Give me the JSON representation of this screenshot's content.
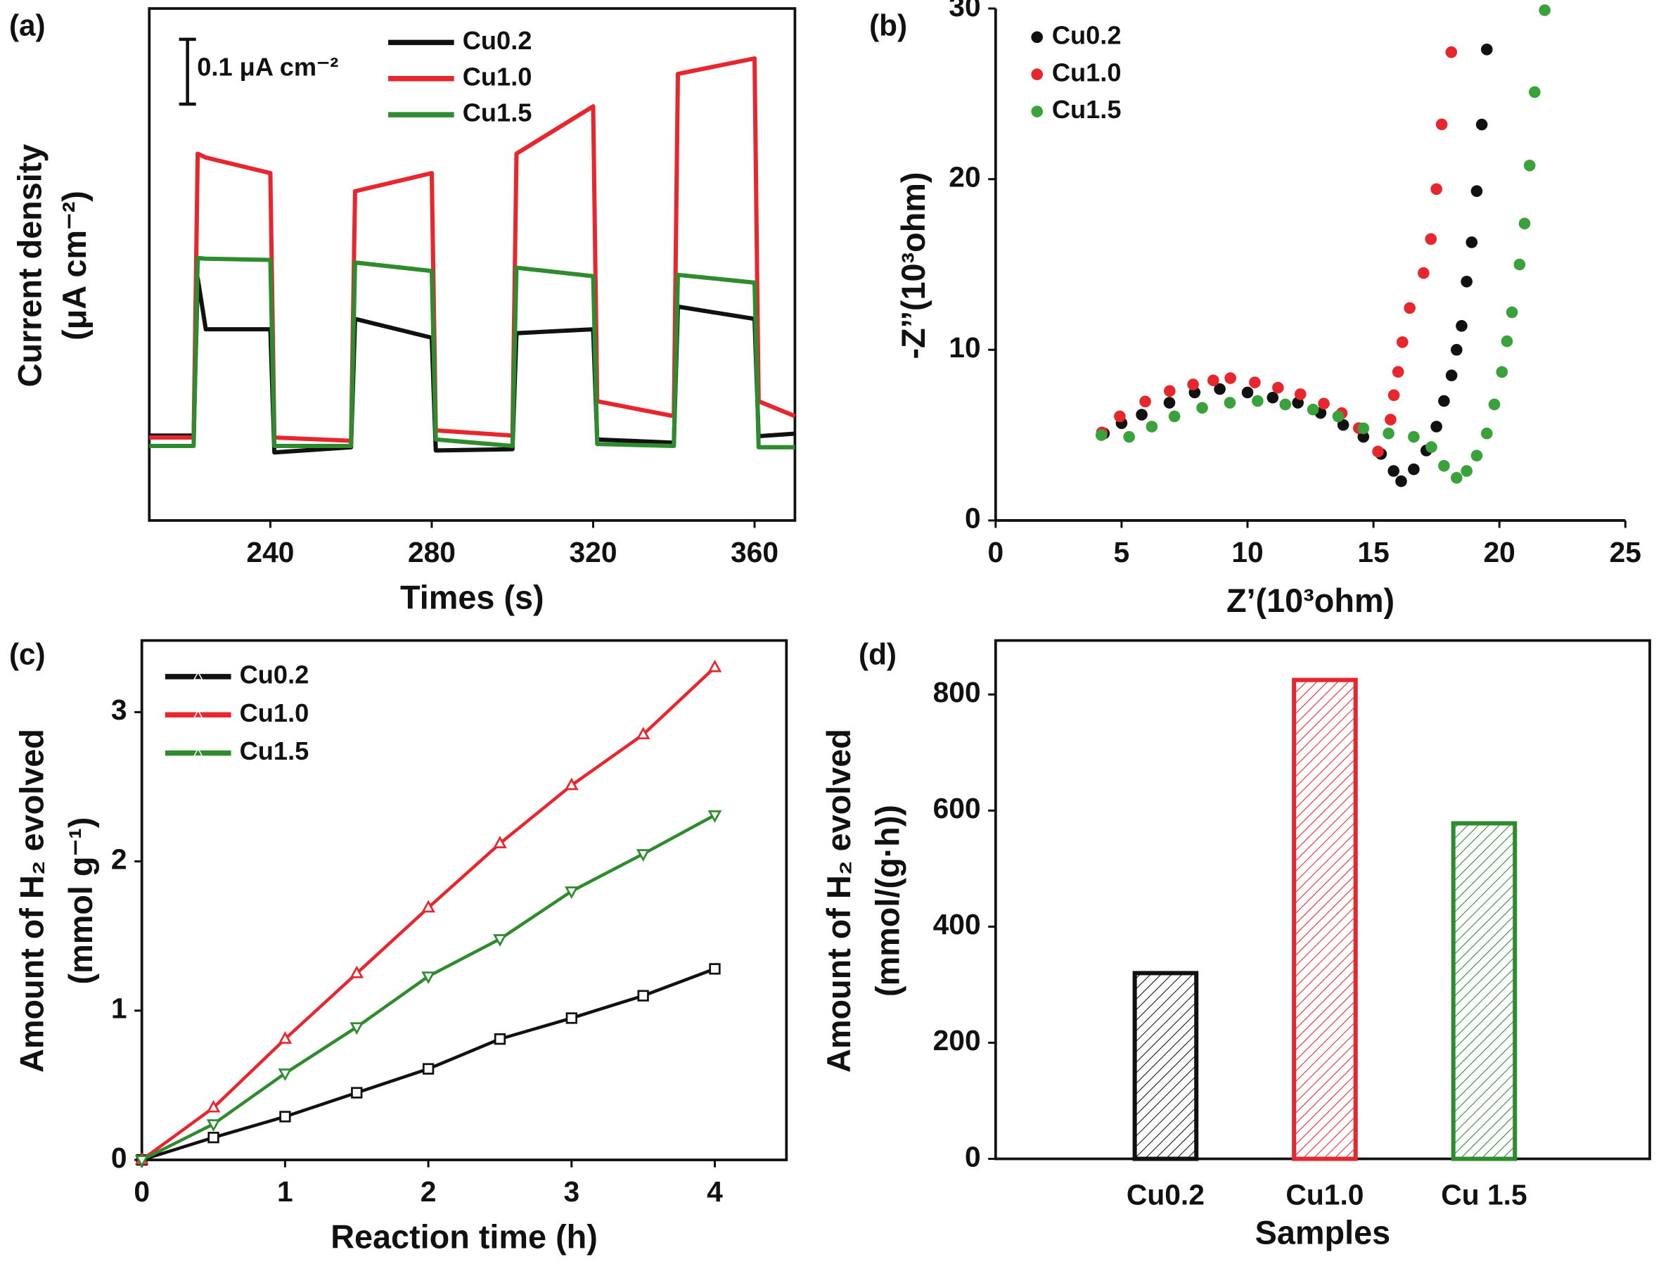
{
  "chart_data": [
    {
      "type": "line",
      "label": "(a)",
      "xlabel": "Times (s)",
      "ylabel": [
        "Current density",
        "(μA cm⁻²)"
      ],
      "scalebar": {
        "value": 0.1,
        "label": "0.1 μA cm⁻²"
      },
      "x": [
        210,
        221,
        222,
        224,
        240,
        241,
        260,
        261,
        280,
        281,
        300,
        301,
        320,
        321,
        340,
        341,
        360,
        361,
        370
      ],
      "series": [
        {
          "name": "Cu0.2",
          "color": "#111111",
          "values": [
            0.131,
            0.131,
            0.374,
            0.295,
            0.295,
            0.105,
            0.113,
            0.311,
            0.282,
            0.108,
            0.11,
            0.289,
            0.295,
            0.125,
            0.12,
            0.33,
            0.311,
            0.13,
            0.134
          ]
        },
        {
          "name": "Cu1.0",
          "color": "#e8262d",
          "values": [
            0.128,
            0.128,
            0.566,
            0.56,
            0.536,
            0.128,
            0.123,
            0.508,
            0.536,
            0.139,
            0.131,
            0.566,
            0.639,
            0.184,
            0.161,
            0.689,
            0.713,
            0.184,
            0.161
          ]
        },
        {
          "name": "Cu1.5",
          "color": "#2e8b2e",
          "values": [
            0.115,
            0.115,
            0.405,
            0.404,
            0.402,
            0.115,
            0.115,
            0.398,
            0.385,
            0.125,
            0.115,
            0.39,
            0.377,
            0.118,
            0.115,
            0.379,
            0.367,
            0.113,
            0.113
          ]
        }
      ],
      "xlim": [
        210,
        370
      ],
      "xticks": [
        240,
        280,
        320,
        360
      ],
      "ylim": [
        0,
        0.79
      ]
    },
    {
      "type": "scatter",
      "label": "(b)",
      "xlabel": "Z’(10³ohm)",
      "ylabel": [
        "-Z’’(10³ohm)"
      ],
      "series": [
        {
          "name": "Cu0.2",
          "color": "#111111",
          "x": [
            4.3,
            5.0,
            5.8,
            6.9,
            7.9,
            8.9,
            10.0,
            11.0,
            12.0,
            12.9,
            13.8,
            14.6,
            15.3,
            15.8,
            16.1,
            16.6,
            17.1,
            17.5,
            17.8,
            18.1,
            18.3,
            18.5,
            18.7,
            18.9,
            19.1,
            19.3,
            19.5
          ],
          "values": [
            5.1,
            5.7,
            6.2,
            6.9,
            7.5,
            7.7,
            7.5,
            7.2,
            6.9,
            6.3,
            5.6,
            4.9,
            3.9,
            2.9,
            2.3,
            3.0,
            4.1,
            5.5,
            7.0,
            8.5,
            10.0,
            11.4,
            14.0,
            16.3,
            19.3,
            23.2,
            27.6
          ]
        },
        {
          "name": "Cu1.0",
          "color": "#e8262d",
          "x": [
            4.22,
            4.93,
            5.94,
            6.91,
            7.84,
            8.64,
            9.32,
            10.29,
            11.21,
            12.1,
            13.03,
            13.74,
            14.42,
            15.18,
            15.68,
            15.81,
            15.98,
            16.15,
            16.44,
            16.99,
            17.28,
            17.5,
            17.71,
            18.09
          ],
          "values": [
            5.16,
            6.1,
            6.97,
            7.59,
            7.97,
            8.21,
            8.34,
            8.09,
            7.78,
            7.4,
            6.85,
            6.29,
            5.41,
            4.04,
            5.91,
            7.34,
            8.71,
            10.45,
            12.45,
            14.5,
            16.49,
            19.42,
            23.21,
            27.44
          ]
        },
        {
          "name": "Cu1.5",
          "color": "#3aa23a",
          "x": [
            4.2,
            5.3,
            6.2,
            7.1,
            8.2,
            9.3,
            10.4,
            11.5,
            12.6,
            13.6,
            14.6,
            15.6,
            16.6,
            17.3,
            17.8,
            18.3,
            18.7,
            19.1,
            19.5,
            19.8,
            20.1,
            20.3,
            20.5,
            20.8,
            21.0,
            21.2,
            21.4,
            21.8
          ],
          "values": [
            5.0,
            4.9,
            5.5,
            6.1,
            6.6,
            6.9,
            7.0,
            6.8,
            6.5,
            6.1,
            5.4,
            5.1,
            4.9,
            4.3,
            3.2,
            2.5,
            2.9,
            3.8,
            5.1,
            6.8,
            8.7,
            10.5,
            12.2,
            15.0,
            17.4,
            20.8,
            25.1,
            29.9
          ]
        }
      ],
      "xlim": [
        0,
        25
      ],
      "xticks": [
        0,
        5,
        10,
        15,
        20,
        25
      ],
      "ylim": [
        0,
        30
      ],
      "yticks": [
        0,
        10,
        20,
        30
      ]
    },
    {
      "type": "line",
      "label": "(c)",
      "xlabel": "Reaction time (h)",
      "ylabel": [
        "Amount of H₂ evolved",
        "(mmol g⁻¹)"
      ],
      "x": [
        0,
        0.5,
        1,
        1.5,
        2,
        2.5,
        3,
        3.5,
        4
      ],
      "series": [
        {
          "name": "Cu0.2",
          "color": "#111111",
          "marker": "square",
          "values": [
            0,
            0.15,
            0.29,
            0.45,
            0.61,
            0.81,
            0.95,
            1.1,
            1.28
          ]
        },
        {
          "name": "Cu1.0",
          "color": "#e8262d",
          "marker": "triangle-up",
          "values": [
            0,
            0.35,
            0.81,
            1.25,
            1.69,
            2.12,
            2.51,
            2.85,
            3.3
          ]
        },
        {
          "name": "Cu1.5",
          "color": "#2e8b2e",
          "marker": "triangle-down",
          "values": [
            0,
            0.24,
            0.58,
            0.89,
            1.23,
            1.48,
            1.8,
            2.05,
            2.31
          ]
        }
      ],
      "xlim": [
        0,
        4.5
      ],
      "xticks": [
        0,
        1,
        2,
        3,
        4
      ],
      "ylim": [
        0,
        3.48
      ],
      "yticks": [
        0,
        1,
        2,
        3
      ]
    },
    {
      "type": "bar",
      "label": "(d)",
      "xlabel": "Samples",
      "ylabel": [
        "Amount of H₂ evolved",
        "(mmol/(g·h))"
      ],
      "categories": [
        "Cu0.2",
        "Cu1.0",
        "Cu 1.5"
      ],
      "values": [
        320,
        825,
        578
      ],
      "colors": [
        "#111111",
        "#e8262d",
        "#2e8b2e"
      ],
      "ylim": [
        0,
        893
      ],
      "yticks": [
        0,
        200,
        400,
        600,
        800
      ]
    }
  ]
}
